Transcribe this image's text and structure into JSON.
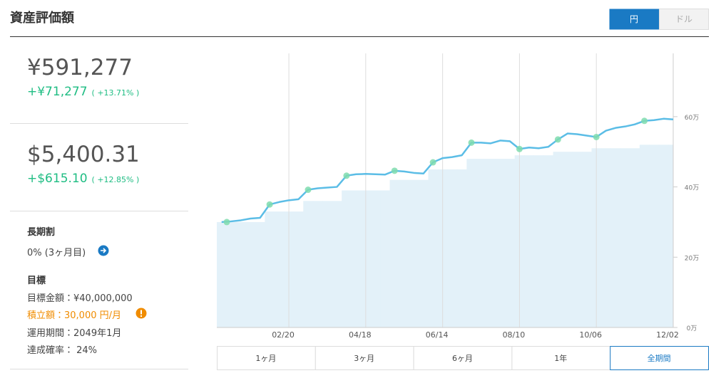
{
  "header": {
    "title": "資産評価額",
    "toggle": [
      "円",
      "ドル"
    ]
  },
  "summary": {
    "yen": {
      "total": "¥591,277",
      "change": "+¥71,277",
      "percent": "( +13.71% )"
    },
    "dollar": {
      "total": "$5,400.31",
      "change": "+$615.10",
      "percent": "( +12.85% )"
    },
    "long_term": {
      "title": "長期割",
      "value": "0% (3ヶ月目)"
    },
    "goal": {
      "title": "目標",
      "rows": [
        "目標金額：¥40,000,000",
        "積立額：30,000 円/月",
        "運用期間：2049年1月",
        "達成確率： 24%"
      ]
    }
  },
  "periods": [
    "1ヶ月",
    "3ヶ月",
    "6ヶ月",
    "1年",
    "全期間"
  ],
  "chart_data": {
    "type": "line",
    "categories": [
      null,
      null,
      null,
      null,
      null,
      null,
      null,
      "02/20",
      null,
      null,
      null,
      null,
      null,
      null,
      null,
      "04/18",
      null,
      null,
      null,
      null,
      null,
      null,
      null,
      "06/14",
      null,
      null,
      null,
      null,
      null,
      null,
      null,
      "08/10",
      null,
      null,
      null,
      null,
      null,
      null,
      null,
      "10/06",
      null,
      null,
      null,
      null,
      null,
      null,
      null,
      "12/02"
    ],
    "series": [
      {
        "type": "line",
        "color": "#5bbde6",
        "values": [
          300000,
          302000,
          305000,
          310000,
          312000,
          350000,
          357000,
          362000,
          365000,
          392000,
          396000,
          398000,
          400000,
          432000,
          436000,
          437000,
          436000,
          435000,
          446000,
          444000,
          440000,
          438000,
          470000,
          482000,
          485000,
          490000,
          526000,
          526000,
          524000,
          532000,
          530000,
          508000,
          512000,
          510000,
          514000,
          535000,
          552000,
          550000,
          546000,
          542000,
          560000,
          568000,
          572000,
          578000,
          588000,
          590000,
          594000,
          592000
        ]
      },
      {
        "type": "area",
        "color": "#e3f1f9",
        "values": [
          300000,
          300000,
          300000,
          300000,
          300000,
          330000,
          330000,
          330000,
          330000,
          360000,
          360000,
          360000,
          360000,
          390000,
          390000,
          390000,
          390000,
          390000,
          420000,
          420000,
          420000,
          420000,
          450000,
          450000,
          450000,
          450000,
          480000,
          480000,
          480000,
          480000,
          480000,
          490000,
          490000,
          490000,
          490000,
          500000,
          500000,
          500000,
          500000,
          510000,
          510000,
          510000,
          510000,
          510000,
          520000,
          520000,
          520000,
          520000
        ]
      }
    ],
    "ylim": [
      0,
      780000
    ],
    "yticks": [
      {
        "value": 0,
        "label": "0万"
      },
      {
        "value": 200000,
        "label": "20万"
      },
      {
        "value": 400000,
        "label": "40万"
      },
      {
        "value": 600000,
        "label": "60万"
      }
    ],
    "grid": true
  }
}
